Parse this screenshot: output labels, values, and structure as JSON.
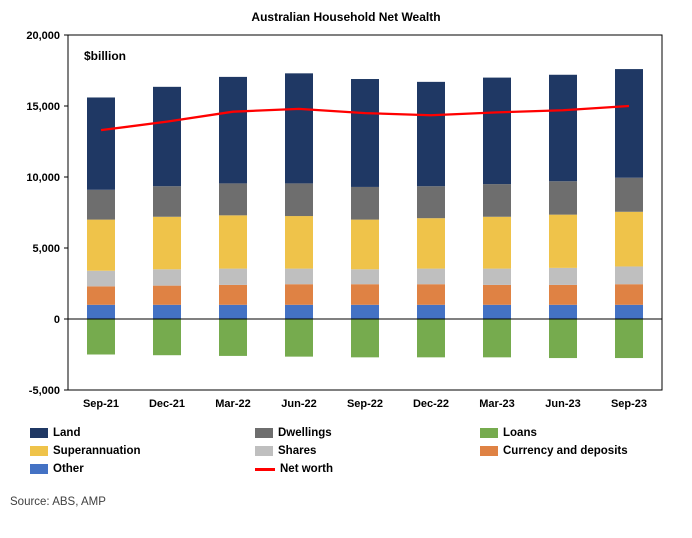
{
  "source": "Source: ABS, AMP",
  "chart_data": {
    "type": "bar",
    "variant": "stacked-bars-with-line",
    "title": "Australian Household Net Wealth",
    "unit_label": "$billion",
    "xlabel": "",
    "ylabel": "$billion",
    "ylim": [
      -5000,
      20000
    ],
    "grid": false,
    "legend_position": "bottom",
    "categories": [
      "Sep-21",
      "Dec-21",
      "Mar-22",
      "Jun-22",
      "Sep-22",
      "Dec-22",
      "Mar-23",
      "Jun-23",
      "Sep-23"
    ],
    "stack_order_bottom_to_top": [
      "Other",
      "Currency and deposits",
      "Shares",
      "Superannuation",
      "Dwellings",
      "Land"
    ],
    "y_ticks": [
      {
        "value": 20000,
        "label": "20,000"
      },
      {
        "value": 15000,
        "label": "15,000"
      },
      {
        "value": 10000,
        "label": "10,000"
      },
      {
        "value": 5000,
        "label": "5,000"
      },
      {
        "value": 0,
        "label": "0"
      },
      {
        "value": -5000,
        "label": "-5,000"
      }
    ],
    "series": [
      {
        "name": "Land",
        "color": "#1F3864",
        "values": [
          6500,
          7000,
          7500,
          7750,
          7600,
          7350,
          7500,
          7500,
          7650
        ]
      },
      {
        "name": "Dwellings",
        "color": "#6E6E6E",
        "values": [
          2100,
          2150,
          2250,
          2300,
          2300,
          2250,
          2300,
          2350,
          2400
        ]
      },
      {
        "name": "Loans",
        "color": "#76AB4E",
        "values": [
          -2500,
          -2550,
          -2600,
          -2650,
          -2700,
          -2700,
          -2700,
          -2750,
          -2750
        ]
      },
      {
        "name": "Superannuation",
        "color": "#EFC34A",
        "values": [
          3600,
          3700,
          3750,
          3700,
          3500,
          3550,
          3650,
          3750,
          3850
        ]
      },
      {
        "name": "Shares",
        "color": "#BFBFBF",
        "values": [
          1100,
          1150,
          1150,
          1100,
          1050,
          1100,
          1150,
          1200,
          1250
        ]
      },
      {
        "name": "Currency and deposits",
        "color": "#DF8244",
        "values": [
          1300,
          1350,
          1400,
          1450,
          1450,
          1450,
          1400,
          1400,
          1450
        ]
      },
      {
        "name": "Other",
        "color": "#4472C4",
        "values": [
          1000,
          1000,
          1000,
          1000,
          1000,
          1000,
          1000,
          1000,
          1000
        ]
      },
      {
        "name": "Net worth",
        "type": "line",
        "color": "#FF0000",
        "values": [
          13300,
          13900,
          14600,
          14800,
          14500,
          14350,
          14550,
          14700,
          15000
        ]
      }
    ]
  },
  "legend": {
    "items": [
      {
        "label": "Land",
        "series": "Land",
        "marker": "box"
      },
      {
        "label": "Dwellings",
        "series": "Dwellings",
        "marker": "box"
      },
      {
        "label": "Loans",
        "series": "Loans",
        "marker": "box"
      },
      {
        "label": "Superannuation",
        "series": "Superannuation",
        "marker": "box"
      },
      {
        "label": "Shares",
        "series": "Shares",
        "marker": "box"
      },
      {
        "label": "Currency and deposits",
        "series": "Currency and deposits",
        "marker": "box"
      },
      {
        "label": "Other",
        "series": "Other",
        "marker": "box"
      },
      {
        "label": "Net worth",
        "series": "Net worth",
        "marker": "line"
      }
    ]
  }
}
